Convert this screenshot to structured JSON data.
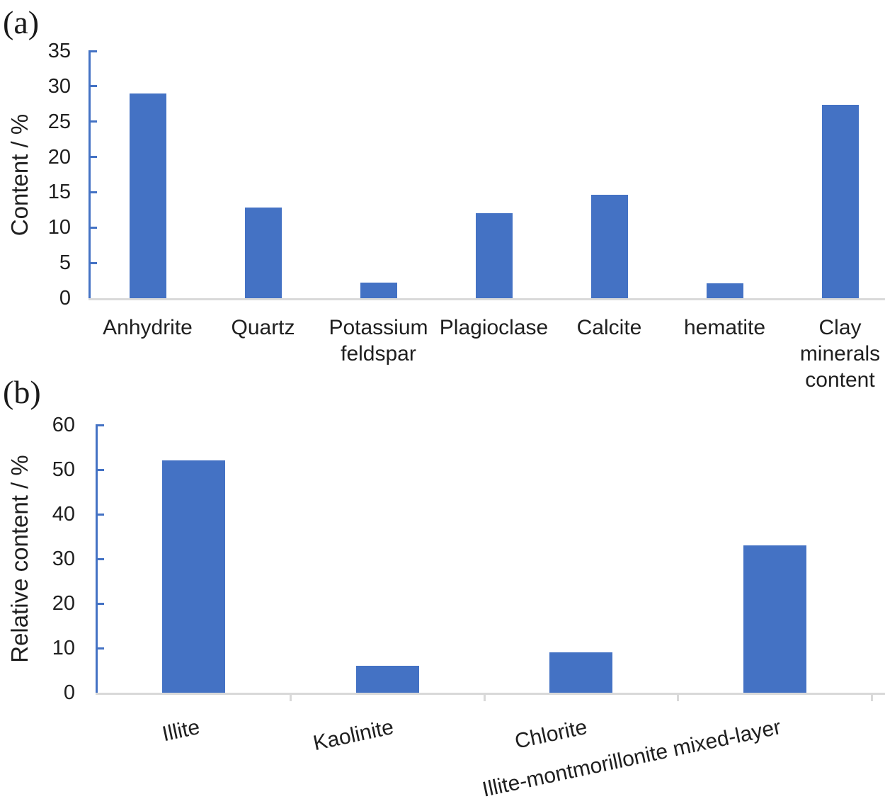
{
  "figure": {
    "panel_a_label": "(a)",
    "panel_b_label": "(b)"
  },
  "colors": {
    "bar": "#4472C4",
    "y_axis": "#4472C4",
    "x_axis": "#D9D9D9",
    "text": "#1f1f1f"
  },
  "chart_data": [
    {
      "type": "bar",
      "panel": "a",
      "title": "",
      "xlabel": "",
      "ylabel": "Content / %",
      "categories": [
        "Anhydrite",
        "Quartz",
        "Potassium feldspar",
        "Plagioclase",
        "Calcite",
        "hematite",
        "Clay minerals content"
      ],
      "values": [
        29,
        12.8,
        2.2,
        12,
        14.6,
        2.1,
        27.4
      ],
      "ylim": [
        0,
        35
      ],
      "yticks": [
        0,
        5,
        10,
        15,
        20,
        25,
        30,
        35
      ],
      "grid": false,
      "legend": null,
      "bar_color": "#4472C4",
      "x_label_rotation_deg": 0
    },
    {
      "type": "bar",
      "panel": "b",
      "title": "",
      "xlabel": "",
      "ylabel": "Relative content / %",
      "categories": [
        "Illite",
        "Kaolinite",
        "Chlorite",
        "Illite-montmorillonite mixed-layer"
      ],
      "values": [
        52,
        6,
        9,
        33
      ],
      "ylim": [
        0,
        60
      ],
      "yticks": [
        0,
        10,
        20,
        30,
        40,
        50,
        60
      ],
      "grid": false,
      "legend": null,
      "bar_color": "#4472C4",
      "x_label_rotation_deg": -12
    }
  ]
}
